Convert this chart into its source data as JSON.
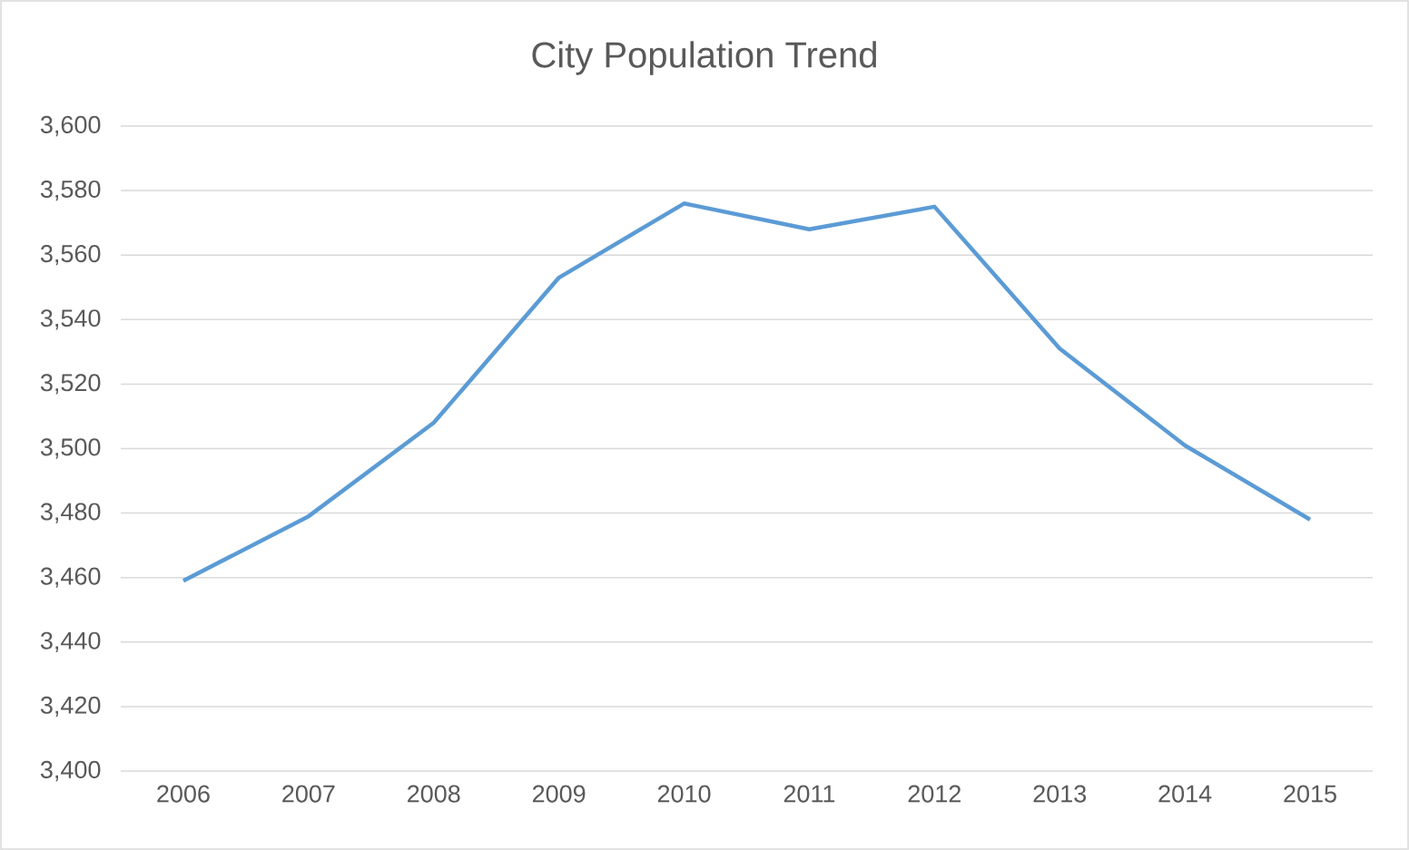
{
  "chart_data": {
    "type": "line",
    "title": "City Population Trend",
    "categories": [
      "2006",
      "2007",
      "2008",
      "2009",
      "2010",
      "2011",
      "2012",
      "2013",
      "2014",
      "2015"
    ],
    "series": [
      {
        "color": "#5b9bd5",
        "values": [
          3459,
          3479,
          3508,
          3553,
          3576,
          3568,
          3575,
          3531,
          3501,
          3478
        ]
      }
    ],
    "ylim": [
      3400,
      3600
    ],
    "yticks": [
      {
        "value": 3400,
        "label": "3,400"
      },
      {
        "value": 3420,
        "label": "3,420"
      },
      {
        "value": 3440,
        "label": "3,440"
      },
      {
        "value": 3460,
        "label": "3,460"
      },
      {
        "value": 3480,
        "label": "3,480"
      },
      {
        "value": 3500,
        "label": "3,500"
      },
      {
        "value": 3520,
        "label": "3,520"
      },
      {
        "value": 3540,
        "label": "3,540"
      },
      {
        "value": 3560,
        "label": "3,560"
      },
      {
        "value": 3580,
        "label": "3,580"
      },
      {
        "value": 3600,
        "label": "3,600"
      }
    ],
    "grid": "y"
  }
}
